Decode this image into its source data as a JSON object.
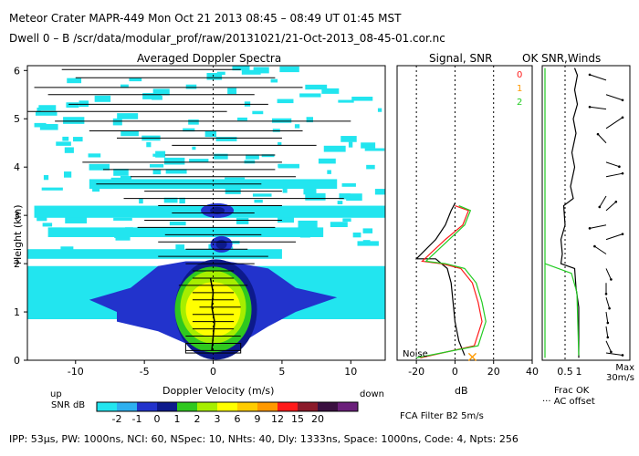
{
  "header": {
    "line1": "Meteor Crater   MAPR-449   Mon Oct 21 2013 08:45 – 08:49 UT 01:45 MST",
    "line2": "Dwell   0 –  B    /scr/data/modular_prof/raw/20131021/21-Oct-2013_08-45-01.cor.nc"
  },
  "colors": {
    "cyan": "#22e5ef",
    "blue": "#2233cc",
    "navy": "#0d1a8c",
    "lime": "#a6ee00",
    "yellow": "#ffff00",
    "orange": "#ff9900",
    "red": "#ff1a1a",
    "purple": "#6a1f7a",
    "green_line": "#22cc22"
  },
  "chart_data": [
    {
      "type": "heatmap",
      "title": "Averaged Doppler Spectra",
      "xlabel": "Doppler Velocity (m/s)",
      "ylabel": "Height (km)",
      "xlim": [
        -13.5,
        12.5
      ],
      "ylim": [
        0,
        6.1
      ],
      "xticks": [
        -10,
        -5,
        0,
        5,
        10
      ],
      "yticks": [
        0,
        1,
        2,
        3,
        4,
        5,
        6
      ],
      "colorbar": {
        "label": "SNR dB",
        "ticks": [
          "-2",
          "-1",
          "0",
          "1",
          "2",
          "3",
          "6",
          "9",
          "12",
          "15",
          "20"
        ],
        "colors": [
          "#22e5ef",
          "#2eb0f0",
          "#2233cc",
          "#0d1a8c",
          "#2fc81f",
          "#a6ee00",
          "#ffff00",
          "#ffcc00",
          "#ff9900",
          "#ff1a1a",
          "#8b1a2a",
          "#3a1040",
          "#6a1f7a"
        ]
      },
      "corner_labels": {
        "up": "up",
        "down": "down"
      },
      "spread_bars": [
        {
          "h": 6.02,
          "lo": -11,
          "hi": 2
        },
        {
          "h": 5.85,
          "lo": -10,
          "hi": 4.5
        },
        {
          "h": 5.65,
          "lo": -13,
          "hi": 6.5
        },
        {
          "h": 5.5,
          "lo": -12,
          "hi": 3
        },
        {
          "h": 5.3,
          "lo": -10.5,
          "hi": 4
        },
        {
          "h": 5.15,
          "lo": -13.5,
          "hi": 1
        },
        {
          "h": 4.95,
          "lo": -11.5,
          "hi": 10
        },
        {
          "h": 4.75,
          "lo": -9,
          "hi": 6.5
        },
        {
          "h": 4.6,
          "lo": -7,
          "hi": 5
        },
        {
          "h": 4.45,
          "lo": -3,
          "hi": 7.5
        },
        {
          "h": 4.25,
          "lo": -3.5,
          "hi": 4.5
        },
        {
          "h": 4.1,
          "lo": -9.5,
          "hi": 5
        },
        {
          "h": 3.95,
          "lo": -8,
          "hi": 4.5
        },
        {
          "h": 3.8,
          "lo": -6,
          "hi": 6
        },
        {
          "h": 3.65,
          "lo": -8.5,
          "hi": 3.5
        },
        {
          "h": 3.5,
          "lo": -5,
          "hi": 5
        },
        {
          "h": 3.35,
          "lo": -6.5,
          "hi": 9.5
        },
        {
          "h": 3.2,
          "lo": -4,
          "hi": 5
        },
        {
          "h": 3.05,
          "lo": -3,
          "hi": 3
        },
        {
          "h": 2.9,
          "lo": -5,
          "hi": 5
        },
        {
          "h": 2.75,
          "lo": -5.5,
          "hi": 4.5
        },
        {
          "h": 2.6,
          "lo": -3.5,
          "hi": 3.5
        },
        {
          "h": 2.45,
          "lo": -4,
          "hi": 6
        },
        {
          "h": 2.3,
          "lo": -2,
          "hi": 2.5
        },
        {
          "h": 2.15,
          "lo": -4,
          "hi": 4
        },
        {
          "h": 2.0,
          "lo": -2,
          "hi": 3
        },
        {
          "h": 1.85,
          "lo": -1.5,
          "hi": 1.5
        },
        {
          "h": 1.7,
          "lo": -1.5,
          "hi": 1.5
        },
        {
          "h": 1.55,
          "lo": -2.5,
          "hi": 2.5
        },
        {
          "h": 1.4,
          "lo": -1.5,
          "hi": 1.5
        },
        {
          "h": 1.25,
          "lo": -1.5,
          "hi": 1.5
        },
        {
          "h": 1.1,
          "lo": -1,
          "hi": 2
        },
        {
          "h": 0.95,
          "lo": -1.5,
          "hi": 1.5
        },
        {
          "h": 0.8,
          "lo": -1.5,
          "hi": 1.5
        },
        {
          "h": 0.65,
          "lo": -1.5,
          "hi": 1.5
        },
        {
          "h": 0.5,
          "lo": -2,
          "hi": 2
        },
        {
          "h": 0.35,
          "lo": -1.5,
          "hi": 1.5
        },
        {
          "h": 0.2,
          "lo": -2,
          "hi": 2
        }
      ],
      "mean_velocity": [
        {
          "h": 0.2,
          "v": -0.1
        },
        {
          "h": 0.5,
          "v": 0.0
        },
        {
          "h": 0.8,
          "v": 0.1
        },
        {
          "h": 1.1,
          "v": -0.1
        },
        {
          "h": 1.4,
          "v": 0.0
        },
        {
          "h": 1.7,
          "v": -0.2
        }
      ]
    },
    {
      "type": "line",
      "title": "Signal, SNR",
      "xlabel": "dB",
      "xlim": [
        -30,
        40
      ],
      "xticks": [
        "-20",
        "0",
        "20",
        "40"
      ],
      "noise_label": "Noise",
      "legend": [
        "0",
        "1",
        "2"
      ],
      "series": [
        {
          "name": "0",
          "color": "#000000",
          "points": [
            [
              5,
              0.1
            ],
            [
              2,
              0.4
            ],
            [
              0,
              0.8
            ],
            [
              -1,
              1.2
            ],
            [
              -2,
              1.6
            ],
            [
              -4,
              1.9
            ],
            [
              -10,
              2.1
            ],
            [
              -20,
              2.1
            ],
            [
              -10,
              2.5
            ],
            [
              -5,
              2.8
            ],
            [
              -2,
              3.1
            ],
            [
              0,
              3.25
            ]
          ]
        },
        {
          "name": "1",
          "color": "#ff1a1a",
          "points": [
            [
              -18,
              0.05
            ],
            [
              10,
              0.3
            ],
            [
              14,
              0.8
            ],
            [
              12,
              1.2
            ],
            [
              9,
              1.6
            ],
            [
              3,
              1.9
            ],
            [
              -7,
              2.0
            ],
            [
              -17,
              2.05
            ],
            [
              -5,
              2.5
            ],
            [
              4,
              2.8
            ],
            [
              7,
              3.1
            ],
            [
              0,
              3.2
            ]
          ]
        },
        {
          "name": "2",
          "color": "#22cc22",
          "points": [
            [
              -20,
              0.05
            ],
            [
              12,
              0.3
            ],
            [
              16,
              0.8
            ],
            [
              14,
              1.2
            ],
            [
              11,
              1.6
            ],
            [
              5,
              1.9
            ],
            [
              -5,
              2.0
            ],
            [
              -15,
              2.05
            ],
            [
              -3,
              2.5
            ],
            [
              5,
              2.8
            ],
            [
              8,
              3.1
            ],
            [
              2,
              3.2
            ]
          ]
        }
      ],
      "markers": [
        {
          "x": 9,
          "h": 0.05,
          "symbol": "×"
        }
      ]
    },
    {
      "type": "line",
      "title": "OK SNR,Winds",
      "xlabel": "Frac OK",
      "xtick_labels": [
        "0.5",
        "1"
      ],
      "legend_note": "AC offset",
      "scale_label": "Max 30m/s",
      "series": [
        {
          "name": "Frac OK",
          "color": "#000000",
          "points": [
            [
              1.0,
              0.05
            ],
            [
              1.0,
              1.1
            ],
            [
              0.9,
              1.5
            ],
            [
              0.85,
              1.9
            ],
            [
              0.35,
              2.0
            ],
            [
              0.4,
              2.2
            ],
            [
              0.35,
              2.5
            ],
            [
              0.5,
              2.8
            ],
            [
              0.45,
              3.2
            ],
            [
              0.8,
              3.35
            ],
            [
              0.7,
              3.6
            ],
            [
              0.85,
              4.0
            ],
            [
              0.75,
              4.3
            ],
            [
              0.9,
              4.7
            ],
            [
              0.8,
              5.0
            ],
            [
              0.95,
              5.3
            ],
            [
              0.85,
              5.6
            ],
            [
              0.95,
              5.9
            ],
            [
              0.85,
              6.05
            ]
          ]
        },
        {
          "name": "AC offset",
          "color": "#22cc22",
          "points": [
            [
              0,
              0.05
            ],
            [
              0,
              6.05
            ]
          ]
        }
      ]
    }
  ],
  "footer": {
    "filter": "FCA Filter B2  5m/s",
    "params": "IPP: 53μs,  PW: 1000ns,  NCI: 60,  NSpec: 10,  NHts: 40,  Dly: 1333ns,  Space: 1000ns,  Code: 4,  Npts: 256"
  }
}
